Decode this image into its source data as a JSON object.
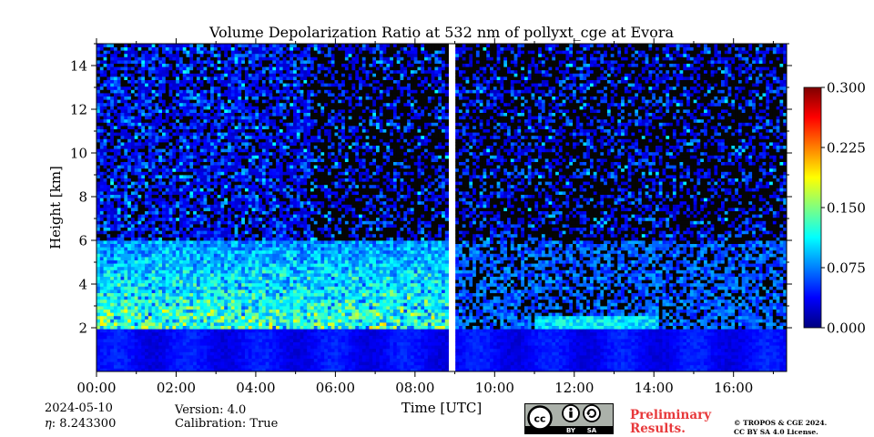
{
  "chart_data": {
    "type": "heatmap",
    "title": "Volume Depolarization Ratio at 532 nm of pollyxt_cge at Evora",
    "xlabel": "Time [UTC]",
    "ylabel": "Height [km]",
    "xlim": [
      "00:00",
      "17:20"
    ],
    "ylim": [
      0,
      15
    ],
    "x_ticks": [
      "00:00",
      "02:00",
      "04:00",
      "06:00",
      "08:00",
      "10:00",
      "12:00",
      "14:00",
      "16:00"
    ],
    "y_ticks": [
      2,
      4,
      6,
      8,
      10,
      12,
      14
    ],
    "colorbar": {
      "range": [
        0.0,
        0.3
      ],
      "ticks": [
        "0.000",
        "0.075",
        "0.150",
        "0.225",
        "0.300"
      ],
      "colormap": "jet"
    },
    "data_gap": [
      "08:51",
      "09:01"
    ],
    "description": "Low depolarization (0.02-0.06) below ~2 km; noisy enhanced values (0.08-0.15) between 2 and 6 km before the gap; low cloud base near 2.3 km from about 11:00 to 14:00; noisy high-altitude signal above 8 km."
  },
  "footer": {
    "date": "2024-05-10",
    "eta_label": "η",
    "eta": ": 8.243300",
    "version": "Version: 4.0",
    "calibration": "Calibration: True",
    "preliminary_line1": "Preliminary",
    "preliminary_line2": "Results.",
    "copyright_line1": "© TROPOS & CGE 2024.",
    "copyright_line2": "CC BY SA 4.0 License.",
    "license_badge": "cc-by-sa-badge",
    "license_badge_text": [
      "BY",
      "SA"
    ]
  }
}
